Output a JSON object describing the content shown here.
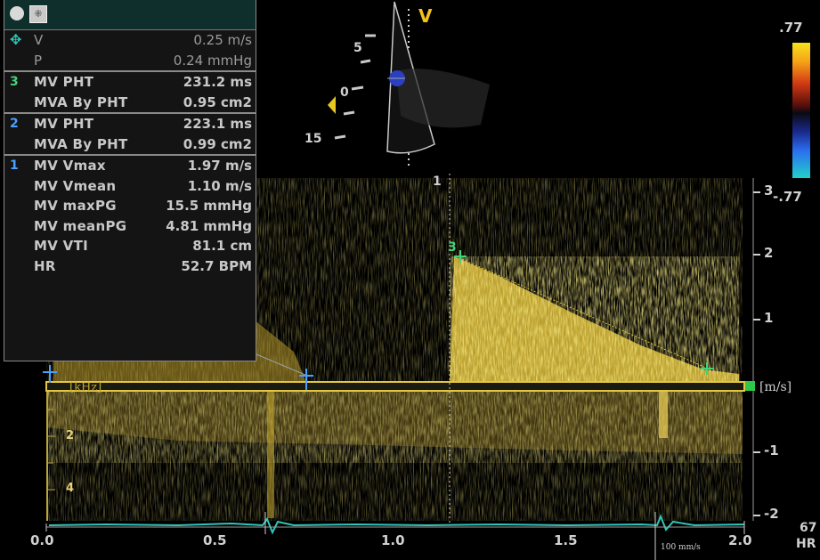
{
  "panel": {
    "toolbar": {
      "cursor_glyph": "⁜"
    },
    "current": {
      "rows": [
        {
          "label": "V",
          "value": "0.25 m/s"
        },
        {
          "label": "P",
          "value": "0.24 mmHg"
        }
      ]
    },
    "group3": {
      "index": "3",
      "rows": [
        {
          "label": "MV PHT",
          "value": "231.2 ms"
        },
        {
          "label": "MVA By PHT",
          "value": "0.95 cm2"
        }
      ]
    },
    "group2": {
      "index": "2",
      "rows": [
        {
          "label": "MV PHT",
          "value": "223.1 ms"
        },
        {
          "label": "MVA By PHT",
          "value": "0.99 cm2"
        }
      ]
    },
    "group1": {
      "index": "1",
      "rows": [
        {
          "label": "MV Vmax",
          "value": "1.97 m/s"
        },
        {
          "label": "MV Vmean",
          "value": "1.10 m/s"
        },
        {
          "label": "MV maxPG",
          "value": "15.5 mmHg"
        },
        {
          "label": "MV meanPG",
          "value": "4.81 mmHg"
        },
        {
          "label": "MV VTI",
          "value": "81.1 cm"
        },
        {
          "label": "HR",
          "value": "52.7 BPM"
        }
      ]
    }
  },
  "probe": {
    "orientation_mark": "V",
    "depth_labels": [
      "0",
      "5",
      "15"
    ]
  },
  "colorbar": {
    "top": ".77",
    "bottom": "-.77"
  },
  "velocity_scale": {
    "labels": [
      "3",
      "2",
      "1",
      "-1",
      "-2"
    ],
    "unit": "[m/s]"
  },
  "left_scale": {
    "unit": "[kHz]",
    "labels": [
      "2",
      "4"
    ]
  },
  "time_axis": {
    "labels": [
      "0.0",
      "0.5",
      "1.0",
      "1.5",
      "2.0"
    ],
    "speed": "100 mm/s"
  },
  "cursors": {
    "c1": "1",
    "c3": "3"
  },
  "heart_rate": {
    "value": "67",
    "label": "HR"
  },
  "colors": {
    "doppler": "#e3c23a",
    "ecg": "#2ec7b8",
    "cursor": "#4aa0ff",
    "marker": "#2ec84a"
  }
}
